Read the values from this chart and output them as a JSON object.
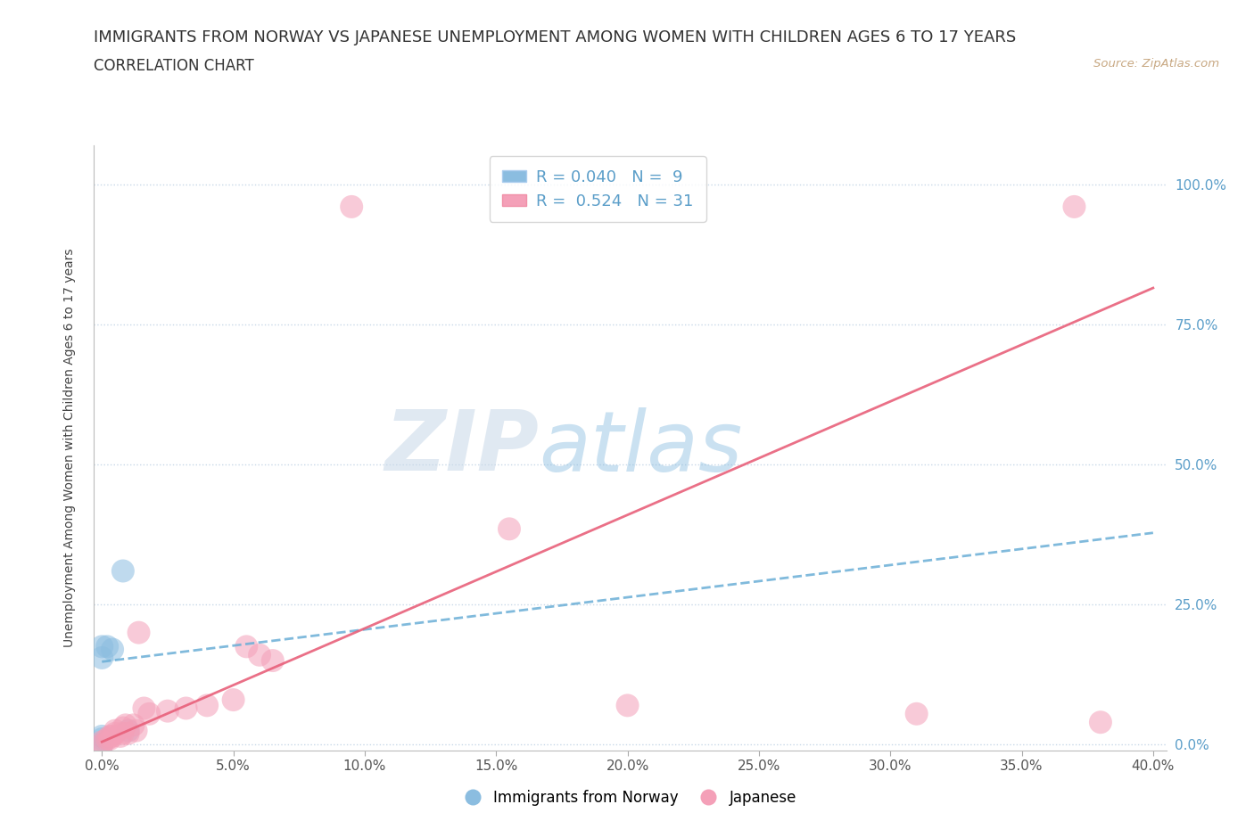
{
  "title_line1": "IMMIGRANTS FROM NORWAY VS JAPANESE UNEMPLOYMENT AMONG WOMEN WITH CHILDREN AGES 6 TO 17 YEARS",
  "title_line2": "CORRELATION CHART",
  "source_text": "Source: ZipAtlas.com",
  "ylabel": "Unemployment Among Women with Children Ages 6 to 17 years",
  "x_ticks": [
    0.0,
    0.05,
    0.1,
    0.15,
    0.2,
    0.25,
    0.3,
    0.35,
    0.4
  ],
  "y_ticks_right": [
    "0.0%",
    "25.0%",
    "50.0%",
    "75.0%",
    "100.0%"
  ],
  "y_ticks_vals": [
    0.0,
    0.25,
    0.5,
    0.75,
    1.0
  ],
  "xlim": [
    -0.003,
    0.405
  ],
  "ylim": [
    -0.01,
    1.07
  ],
  "blue_color": "#8bbde0",
  "pink_color": "#f4a0b8",
  "blue_line_color": "#6aaed6",
  "pink_line_color": "#e8607a",
  "legend_blue_label": "R = 0.040   N =  9",
  "legend_pink_label": "R =  0.524   N = 31",
  "watermark_zip": "ZIP",
  "watermark_atlas": "atlas",
  "norway_x": [
    0.0,
    0.0,
    0.0,
    0.0,
    0.0,
    0.002,
    0.004,
    0.008,
    0.01
  ],
  "norway_y": [
    0.0,
    0.01,
    0.015,
    0.155,
    0.175,
    0.175,
    0.17,
    0.31,
    0.025
  ],
  "japanese_x": [
    0.0,
    0.0,
    0.002,
    0.003,
    0.003,
    0.004,
    0.005,
    0.005,
    0.007,
    0.008,
    0.008,
    0.009,
    0.01,
    0.012,
    0.013,
    0.014,
    0.016,
    0.018,
    0.025,
    0.032,
    0.04,
    0.05,
    0.055,
    0.06,
    0.065,
    0.155,
    0.2,
    0.31,
    0.38,
    0.095,
    0.37
  ],
  "japanese_y": [
    0.0,
    0.005,
    0.01,
    0.01,
    0.015,
    0.015,
    0.02,
    0.025,
    0.015,
    0.02,
    0.03,
    0.035,
    0.02,
    0.035,
    0.025,
    0.2,
    0.065,
    0.055,
    0.06,
    0.065,
    0.07,
    0.08,
    0.175,
    0.16,
    0.15,
    0.385,
    0.07,
    0.055,
    0.04,
    0.96,
    0.96
  ],
  "norway_line_x0": 0.0,
  "norway_line_x1": 0.4,
  "norway_line_y0": 0.148,
  "norway_line_y1": 0.378,
  "japanese_line_x0": 0.0,
  "japanese_line_x1": 0.4,
  "japanese_line_y0": 0.005,
  "japanese_line_y1": 0.815,
  "background_color": "#ffffff",
  "grid_color": "#c8d8e8",
  "title_fontsize": 13,
  "subtitle_fontsize": 12,
  "label_fontsize": 10,
  "tick_fontsize": 11,
  "right_tick_color": "#5b9ec9"
}
